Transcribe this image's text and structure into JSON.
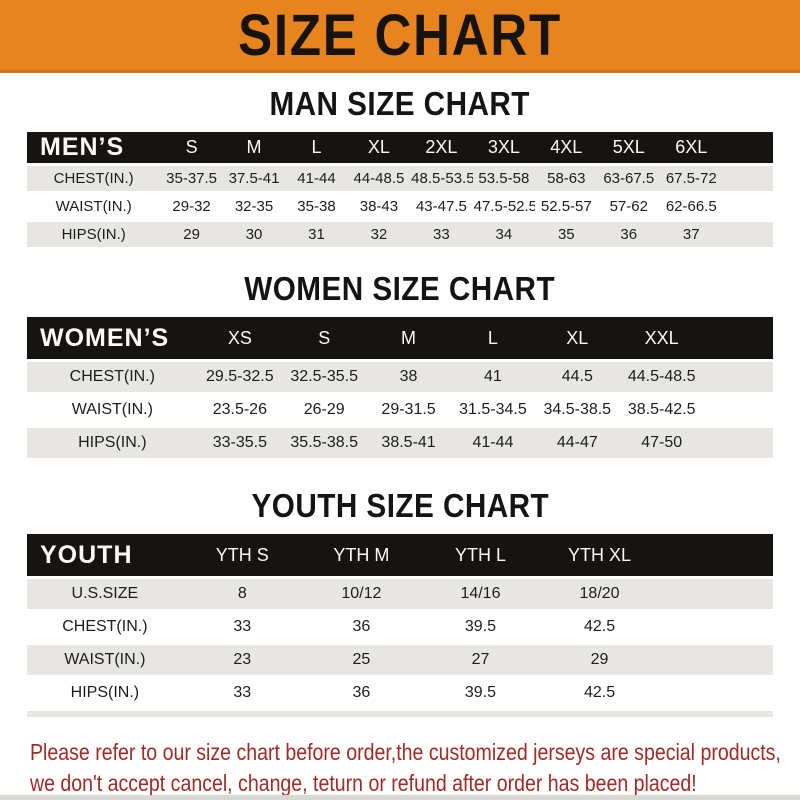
{
  "banner": {
    "title": "SIZE CHART",
    "bg_color": "#E8841F",
    "text_color": "#161311"
  },
  "sections": {
    "man": {
      "title": "MAN SIZE CHART",
      "table": {
        "header": [
          "MEN’S",
          "S",
          "M",
          "L",
          "XL",
          "2XL",
          "3XL",
          "4XL",
          "5XL",
          "6XL"
        ],
        "rows": [
          [
            "CHEST(IN.)",
            "35-37.5",
            "37.5-41",
            "41-44",
            "44-48.5",
            "48.5-53.5",
            "53.5-58",
            "58-63",
            "63-67.5",
            "67.5-72"
          ],
          [
            "WAIST(IN.)",
            "29-32",
            "32-35",
            "35-38",
            "38-43",
            "43-47.5",
            "47.5-52.5",
            "52.5-57",
            "57-62",
            "62-66.5"
          ],
          [
            "HIPS(IN.)",
            "29",
            "30",
            "31",
            "32",
            "33",
            "34",
            "35",
            "36",
            "37"
          ]
        ]
      }
    },
    "women": {
      "title": "WOMEN SIZE CHART",
      "table": {
        "header": [
          "WOMEN’S",
          "XS",
          "S",
          "M",
          "L",
          "XL",
          "XXL"
        ],
        "rows": [
          [
            "CHEST(IN.)",
            "29.5-32.5",
            "32.5-35.5",
            "38",
            "41",
            "44.5",
            "44.5-48.5"
          ],
          [
            "WAIST(IN.)",
            "23.5-26",
            "26-29",
            "29-31.5",
            "31.5-34.5",
            "34.5-38.5",
            "38.5-42.5"
          ],
          [
            "HIPS(IN.)",
            "33-35.5",
            "35.5-38.5",
            "38.5-41",
            "41-44",
            "44-47",
            "47-50"
          ]
        ]
      }
    },
    "youth": {
      "title": "YOUTH SIZE CHART",
      "table": {
        "header": [
          "YOUTH",
          "YTH S",
          "YTH M",
          "YTH L",
          "YTH XL"
        ],
        "rows": [
          [
            "U.S.SIZE",
            "8",
            "10/12",
            "14/16",
            "18/20"
          ],
          [
            "CHEST(IN.)",
            "33",
            "36",
            "39.5",
            "42.5"
          ],
          [
            "WAIST(IN.)",
            "23",
            "25",
            "27",
            "29"
          ],
          [
            "HIPS(IN.)",
            "33",
            "36",
            "39.5",
            "42.5"
          ]
        ]
      }
    }
  },
  "footer": {
    "line1": "Please refer to our size chart before order,the customized jerseys are special products,",
    "line2": "we don't accept cancel, change, teturn or refund after order has been placed!",
    "text_color": "#A12B24"
  },
  "colors": {
    "table_header_bar": "#161311",
    "row_alternate": "#E7E6E3"
  }
}
